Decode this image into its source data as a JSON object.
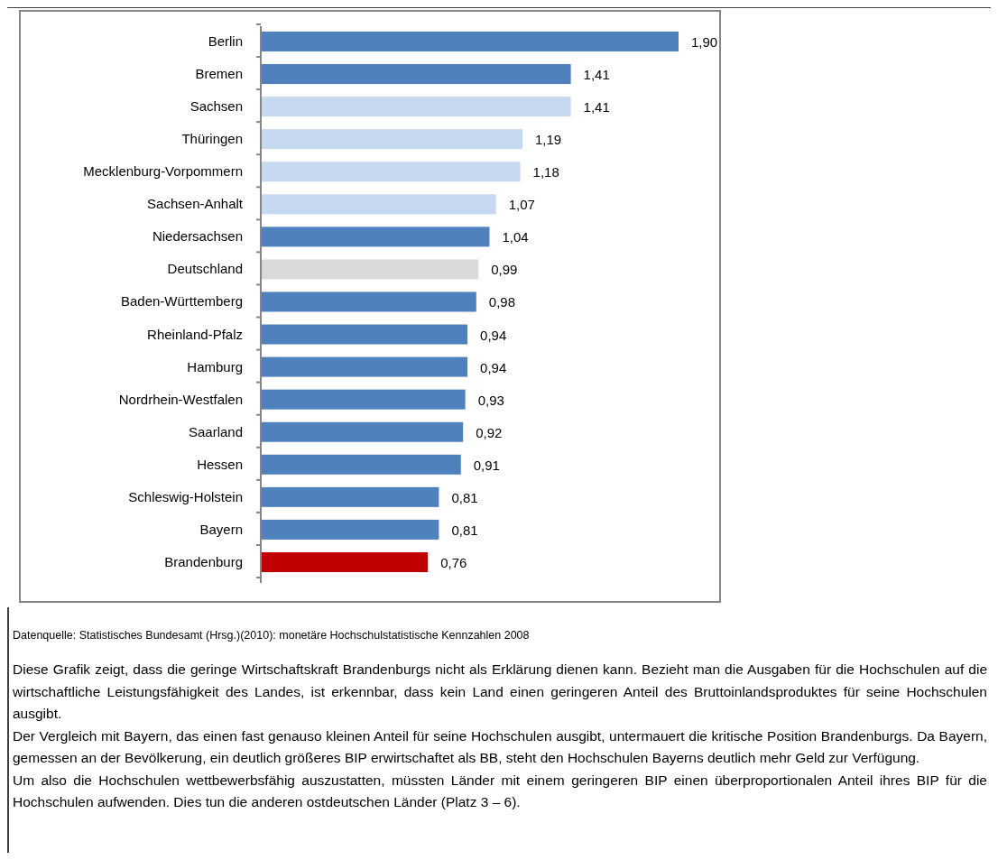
{
  "chart_data": {
    "type": "bar",
    "orientation": "horizontal",
    "categories": [
      "Berlin",
      "Bremen",
      "Sachsen",
      "Thüringen",
      "Mecklenburg-Vorpommern",
      "Sachsen-Anhalt",
      "Niedersachsen",
      "Deutschland",
      "Baden-Württemberg",
      "Rheinland-Pfalz",
      "Hamburg",
      "Nordrhein-Westfalen",
      "Saarland",
      "Hessen",
      "Schleswig-Holstein",
      "Bayern",
      "Brandenburg"
    ],
    "values": [
      1.9,
      1.41,
      1.41,
      1.19,
      1.18,
      1.07,
      1.04,
      0.99,
      0.98,
      0.94,
      0.94,
      0.93,
      0.92,
      0.91,
      0.81,
      0.81,
      0.76
    ],
    "value_labels": [
      "1,90",
      "1,41",
      "1,41",
      "1,19",
      "1,18",
      "1,07",
      "1,04",
      "0,99",
      "0,98",
      "0,94",
      "0,94",
      "0,93",
      "0,92",
      "0,91",
      "0,81",
      "0,81",
      "0,76"
    ],
    "colors": [
      "#4f81bd",
      "#4f81bd",
      "#c6d9f1",
      "#c6d9f1",
      "#c6d9f1",
      "#c6d9f1",
      "#4f81bd",
      "#d9d9d9",
      "#4f81bd",
      "#4f81bd",
      "#4f81bd",
      "#4f81bd",
      "#4f81bd",
      "#4f81bd",
      "#4f81bd",
      "#4f81bd",
      "#c00000"
    ],
    "annotations": [
      "Datenquelle: Statistisches Bundesamt (Hrsg.)(2010): monetäre Hochschulstatistische Kennzahlen 2008",
      "Diese Grafik zeigt, dass die geringe Wirtschaftskraft Brandenburgs nicht als Erklärung dienen kann. Bezieht man die Ausgaben für die Hochschulen auf die wirtschaftliche Leistungsfähigkeit des Landes, ist erkennbar, dass kein Land einen geringeren Anteil des Bruttoinlandsproduktes für seine Hochschulen ausgibt.",
      "Der Vergleich mit Bayern, das einen fast genauso kleinen Anteil für seine Hochschulen ausgibt, untermauert die kritische Position Brandenburgs. Da Bayern, gemessen an der Bevölkerung, ein deutlich größeres BIP erwirtschaftet als BB, steht den Hochschulen Bayerns deutlich mehr Geld zur Verfügung.",
      "Um also die Hochschulen wettbewerbsfähig auszustatten, müssten Länder mit einem geringeren BIP einen überproportionalen Anteil ihres BIP für die Hochschulen aufwenden. Dies tun die anderen ostdeutschen Länder (Platz 3 – 6)."
    ]
  }
}
